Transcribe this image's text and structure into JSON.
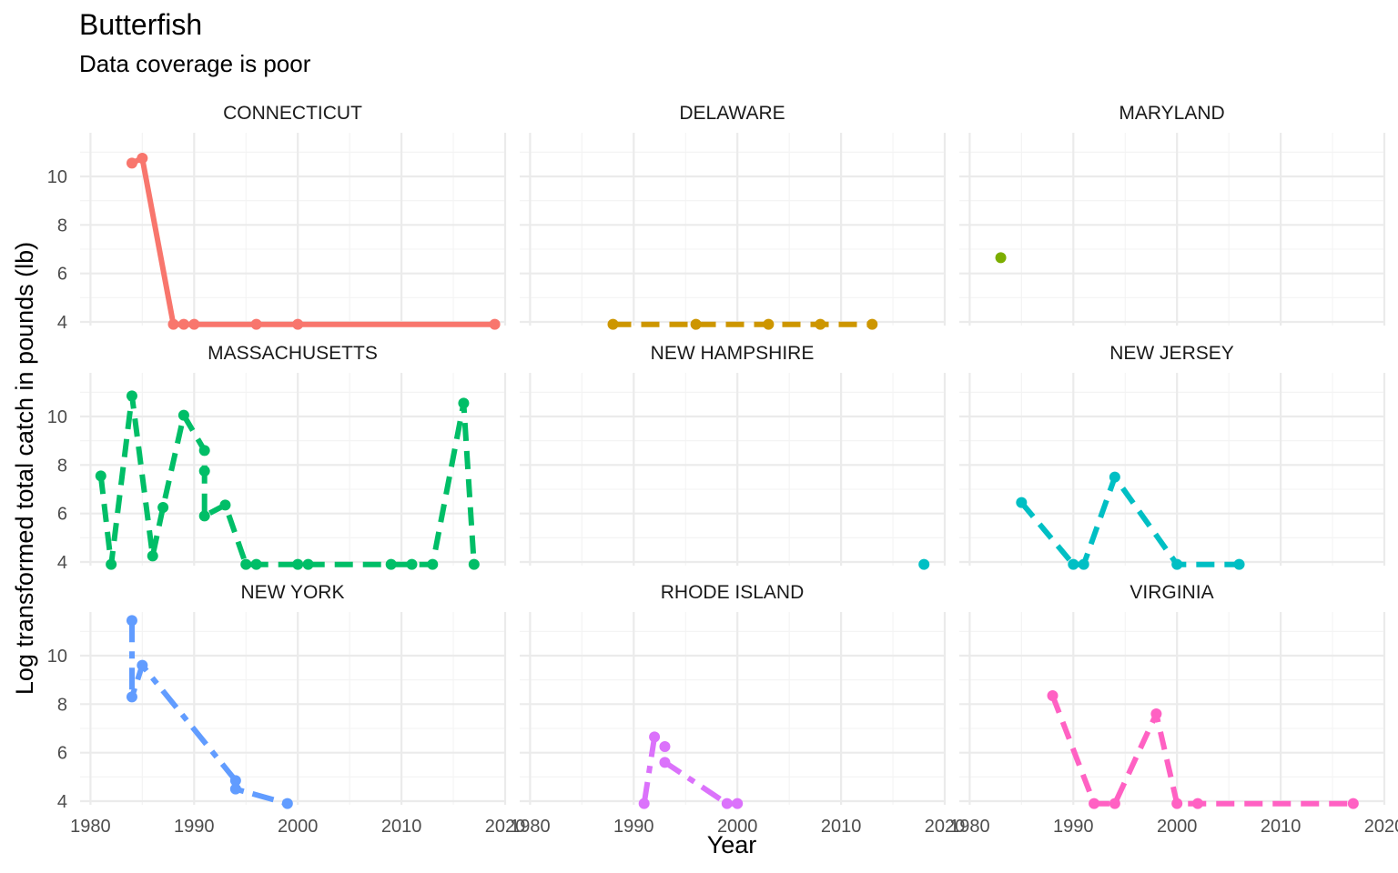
{
  "chart_data": {
    "type": "line",
    "title": "Butterfish",
    "subtitle": "Data coverage is poor",
    "xlabel": "Year",
    "ylabel": "Log transformed  total catch in pounds (lb)",
    "xlim": [
      1979,
      2020
    ],
    "ylim": [
      3.85,
      11.8
    ],
    "x_ticks": [
      1980,
      1990,
      2000,
      2010,
      2020
    ],
    "y_ticks": [
      4,
      6,
      8,
      10
    ],
    "grid": true,
    "legend": "none",
    "panels": [
      {
        "name": "CONNECTICUT",
        "color": "#F8766D",
        "points": [
          [
            1984,
            10.55
          ],
          [
            1985,
            10.75
          ],
          [
            1988,
            3.9
          ],
          [
            1989,
            3.9
          ],
          [
            1990,
            3.9
          ],
          [
            1996,
            3.9
          ],
          [
            2000,
            3.9
          ],
          [
            2019,
            3.9
          ]
        ]
      },
      {
        "name": "DELAWARE",
        "color": "#CD9600",
        "points": [
          [
            1988,
            3.9
          ],
          [
            1996,
            3.9
          ],
          [
            2003,
            3.9
          ],
          [
            2008,
            3.9
          ],
          [
            2013,
            3.9
          ]
        ]
      },
      {
        "name": "MARYLAND",
        "color": "#7CAE00",
        "points": [
          [
            1983,
            6.65
          ]
        ]
      },
      {
        "name": "MASSACHUSETTS",
        "color": "#00BE67",
        "points": [
          [
            1981,
            7.55
          ],
          [
            1982,
            3.9
          ],
          [
            1984,
            10.85
          ],
          [
            1986,
            4.25
          ],
          [
            1987,
            6.25
          ],
          [
            1989,
            10.05
          ],
          [
            1991,
            8.6
          ],
          [
            1991,
            7.75
          ],
          [
            1991,
            5.9
          ],
          [
            1993,
            6.35
          ],
          [
            1995,
            3.9
          ],
          [
            1996,
            3.9
          ],
          [
            2000,
            3.9
          ],
          [
            2001,
            3.9
          ],
          [
            2009,
            3.9
          ],
          [
            2011,
            3.9
          ],
          [
            2013,
            3.9
          ],
          [
            2016,
            10.55
          ],
          [
            2017,
            3.9
          ]
        ]
      },
      {
        "name": "NEW HAMPSHIRE",
        "color": "#00BFC4",
        "points": [
          [
            2018,
            3.9
          ]
        ]
      },
      {
        "name": "NEW JERSEY",
        "color": "#00BFC4",
        "points": [
          [
            1985,
            6.45
          ],
          [
            1990,
            3.9
          ],
          [
            1991,
            3.9
          ],
          [
            1994,
            7.5
          ],
          [
            2000,
            3.9
          ],
          [
            2006,
            3.9
          ]
        ]
      },
      {
        "name": "NEW YORK",
        "color": "#619CFF",
        "points": [
          [
            1984,
            11.45
          ],
          [
            1984,
            8.3
          ],
          [
            1985,
            9.6
          ],
          [
            1994,
            4.85
          ],
          [
            1994,
            4.5
          ],
          [
            1999,
            3.9
          ]
        ]
      },
      {
        "name": "RHODE ISLAND",
        "color": "#DB72FB",
        "points": [
          [
            1991,
            3.9
          ],
          [
            1992,
            6.65
          ],
          [
            1993,
            6.25
          ],
          [
            1993,
            5.6
          ],
          [
            1999,
            3.9
          ],
          [
            2000,
            3.9
          ]
        ]
      },
      {
        "name": "VIRGINIA",
        "color": "#FF61C3",
        "points": [
          [
            1988,
            8.35
          ],
          [
            1992,
            3.9
          ],
          [
            1994,
            3.9
          ],
          [
            1998,
            7.6
          ],
          [
            2000,
            3.9
          ],
          [
            2002,
            3.9
          ],
          [
            2017,
            3.9
          ]
        ]
      }
    ]
  }
}
